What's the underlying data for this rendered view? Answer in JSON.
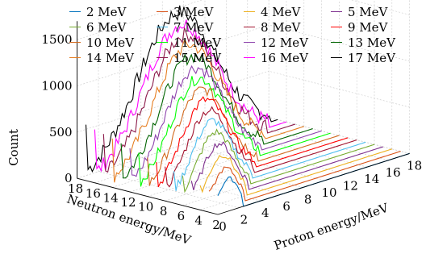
{
  "chart_data": {
    "type": "3d-line",
    "zlabel": "Count",
    "xlabel": "Neutron energy/MeV",
    "ylabel": "Proton energy/MeV",
    "z_ticks": [
      0,
      500,
      1000,
      1500
    ],
    "neutron_ticks": [
      2,
      4,
      6,
      8,
      10,
      12,
      14,
      16,
      18
    ],
    "proton_ticks": [
      0,
      2,
      4,
      6,
      8,
      10,
      12,
      14,
      16,
      18
    ],
    "zlim": [
      0,
      1700
    ],
    "series": [
      {
        "name": "2 MeV",
        "color": "#0072bd",
        "neutron_energy": 2,
        "peak_proton_energy": 1.0,
        "peak_count": 350
      },
      {
        "name": "3 MeV",
        "color": "#d95319",
        "neutron_energy": 3,
        "peak_proton_energy": 1.5,
        "peak_count": 420
      },
      {
        "name": "4 MeV",
        "color": "#edb120",
        "neutron_energy": 4,
        "peak_proton_energy": 2.0,
        "peak_count": 520
      },
      {
        "name": "5 MeV",
        "color": "#7e2f8e",
        "neutron_energy": 5,
        "peak_proton_energy": 2.5,
        "peak_count": 600
      },
      {
        "name": "6 MeV",
        "color": "#77ac30",
        "neutron_energy": 6,
        "peak_proton_energy": 3.0,
        "peak_count": 680
      },
      {
        "name": "7 MeV",
        "color": "#4dbeee",
        "neutron_energy": 7,
        "peak_proton_energy": 3.5,
        "peak_count": 760
      },
      {
        "name": "8 MeV",
        "color": "#a2142f",
        "neutron_energy": 8,
        "peak_proton_energy": 4.0,
        "peak_count": 830
      },
      {
        "name": "9 MeV",
        "color": "#ff0000",
        "neutron_energy": 9,
        "peak_proton_energy": 4.5,
        "peak_count": 900
      },
      {
        "name": "10 MeV",
        "color": "#d2691e",
        "neutron_energy": 10,
        "peak_proton_energy": 5.0,
        "peak_count": 970
      },
      {
        "name": "11 MeV",
        "color": "#00ff00",
        "neutron_energy": 11,
        "peak_proton_energy": 5.5,
        "peak_count": 1050
      },
      {
        "name": "12 MeV",
        "color": "#8e44ad",
        "neutron_energy": 12,
        "peak_proton_energy": 6.0,
        "peak_count": 1120
      },
      {
        "name": "13 MeV",
        "color": "#006400",
        "neutron_energy": 13,
        "peak_proton_energy": 6.5,
        "peak_count": 1200
      },
      {
        "name": "14 MeV",
        "color": "#e67e22",
        "neutron_energy": 14,
        "peak_proton_energy": 7.0,
        "peak_count": 1280
      },
      {
        "name": "15 MeV",
        "color": "#8b1a4a",
        "neutron_energy": 15,
        "peak_proton_energy": 7.5,
        "peak_count": 1350
      },
      {
        "name": "16 MeV",
        "color": "#ff00ff",
        "neutron_energy": 16,
        "peak_proton_energy": 8.0,
        "peak_count": 1420
      },
      {
        "name": "17 MeV",
        "color": "#000000",
        "neutron_energy": 17,
        "peak_proton_energy": 8.5,
        "peak_count": 1500
      }
    ]
  }
}
